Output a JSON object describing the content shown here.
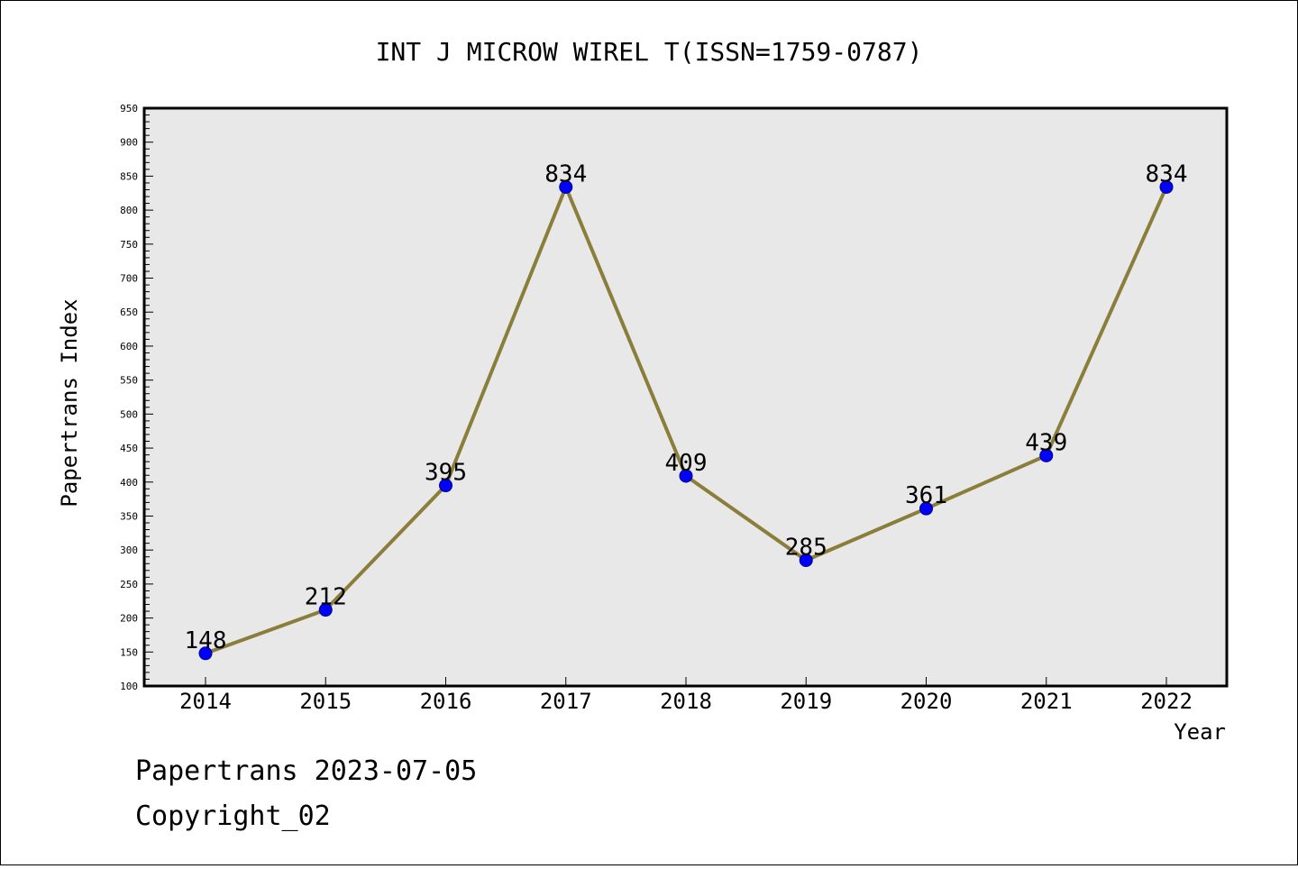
{
  "chart_data": {
    "type": "line",
    "title": "INT J MICROW WIREL T(ISSN=1759-0787)",
    "xlabel": "Year",
    "ylabel": "Papertrans Index",
    "categories": [
      "2014",
      "2015",
      "2016",
      "2017",
      "2018",
      "2019",
      "2020",
      "2021",
      "2022"
    ],
    "series": [
      {
        "values": [
          148,
          212,
          395,
          834,
          409,
          285,
          361,
          439,
          834
        ]
      }
    ],
    "ylim": [
      100,
      950
    ],
    "yticks": [
      100,
      150,
      200,
      250,
      300,
      350,
      400,
      450,
      500,
      550,
      600,
      650,
      700,
      750,
      800,
      850,
      900,
      950
    ],
    "line_color": "#8b7d3a",
    "marker_color": "#0000ff",
    "plot_background": "#e8e8e8",
    "grid": false,
    "legend": false,
    "data_labels": true
  },
  "footer": {
    "line1": "Papertrans 2023-07-05",
    "line2": "Copyright_02"
  }
}
